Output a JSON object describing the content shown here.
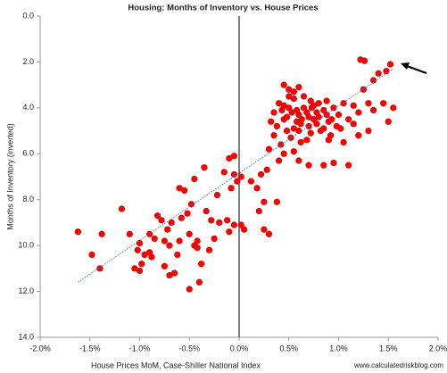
{
  "chart_data": {
    "type": "scatter",
    "title": "Housing: Months of Inventory vs. House Prices",
    "x_label": "House Prices MoM, Case-Shiller National Index",
    "y_label": "Months of Inventory (inverted)",
    "source": "www.calculatedriskblog.com",
    "color": "#ff0000",
    "y_inverted": true,
    "grid": false,
    "xlim": [
      -2,
      2
    ],
    "ylim": [
      0,
      14
    ],
    "xticks": [
      {
        "value": -2,
        "label": "-2.0%"
      },
      {
        "value": -1.5,
        "label": "-1.5%"
      },
      {
        "value": -1,
        "label": "-1.0%"
      },
      {
        "value": -0.5,
        "label": "-0.5%"
      },
      {
        "value": 0,
        "label": "0.0%"
      },
      {
        "value": 0.5,
        "label": "0.5%"
      },
      {
        "value": 1,
        "label": "1.0%"
      },
      {
        "value": 1.5,
        "label": "1.5%"
      },
      {
        "value": 2,
        "label": "2.0%"
      }
    ],
    "yticks": [
      {
        "value": 0,
        "label": "0.0"
      },
      {
        "value": 2,
        "label": "2.0"
      },
      {
        "value": 4,
        "label": "4.0"
      },
      {
        "value": 6,
        "label": "6.0"
      },
      {
        "value": 8,
        "label": "8.0"
      },
      {
        "value": 10,
        "label": "10.0"
      },
      {
        "value": 12,
        "label": "12.0"
      },
      {
        "value": 14,
        "label": "14.0"
      }
    ],
    "trendline": {
      "color": "#4472c4",
      "x": [
        -1.62,
        1.55
      ],
      "y": [
        11.6,
        2.3
      ]
    },
    "x": [
      -1.62,
      -1.38,
      -1.4,
      -1.48,
      -1.18,
      -1.05,
      -1.0,
      -1.02,
      -0.98,
      -1.0,
      -0.95,
      -0.9,
      -0.88,
      -0.85,
      -0.82,
      -0.78,
      -0.75,
      -0.72,
      -0.7,
      -0.68,
      -0.62,
      -0.6,
      -0.58,
      -0.55,
      -0.52,
      -0.5,
      -0.48,
      -0.45,
      -0.42,
      -0.4,
      -0.38,
      -0.35,
      -0.33,
      -0.3,
      -0.28,
      -0.25,
      -0.22,
      -0.2,
      -0.15,
      -0.12,
      -0.1,
      -0.08,
      -0.05,
      -0.02,
      -0.05,
      -0.1,
      -0.05,
      0.02,
      0.05,
      0.02,
      -0.45,
      -0.6,
      -0.65,
      -0.75,
      -0.9,
      -1.1,
      -0.5,
      -0.7,
      -0.42,
      0.12,
      0.22,
      0.25,
      0.2,
      0.3,
      0.25,
      0.38,
      0.18,
      0.35,
      0.4,
      0.45,
      0.5,
      0.55,
      0.48,
      0.6,
      0.65,
      0.7,
      0.75,
      0.8,
      0.85,
      0.9,
      0.95,
      1.0,
      1.05,
      1.1,
      0.42,
      0.52,
      0.62,
      0.72,
      0.82,
      0.92,
      1.02,
      0.38,
      0.58,
      0.68,
      0.78,
      0.88,
      0.98,
      0.5,
      0.55,
      0.65,
      0.6,
      0.7,
      0.75,
      0.8,
      0.85,
      0.45,
      0.35,
      0.3,
      0.45,
      0.6,
      0.7,
      0.85,
      0.95,
      1.1,
      0.4,
      0.55,
      0.28,
      0.32,
      0.5,
      0.48,
      0.62,
      0.72,
      0.68,
      1.15,
      1.2,
      1.25,
      1.3,
      1.35,
      1.22,
      1.26,
      1.4,
      1.48,
      1.52,
      1.45,
      1.55,
      1.5,
      1.35,
      1.3,
      1.2,
      1.15,
      1.05,
      0.9,
      0.55,
      0.6,
      0.45,
      0.58,
      0.78,
      0.88,
      0.93,
      0.73,
      0.63,
      0.53,
      0.43
    ],
    "y": [
      9.4,
      9.5,
      11.0,
      10.4,
      8.4,
      11.0,
      9.9,
      10.2,
      10.8,
      11.1,
      10.4,
      9.5,
      10.5,
      9.7,
      8.7,
      8.9,
      9.8,
      9.3,
      10.0,
      9.0,
      10.4,
      9.8,
      8.8,
      7.6,
      8.6,
      9.5,
      8.2,
      10.0,
      9.8,
      11.6,
      10.8,
      6.6,
      8.5,
      10.2,
      8.9,
      9.7,
      7.8,
      9.0,
      6.8,
      8.9,
      9.4,
      7.5,
      6.9,
      7.2,
      9.1,
      6.2,
      6.1,
      7.0,
      9.3,
      9.1,
      7.1,
      7.5,
      11.2,
      10.9,
      10.3,
      9.5,
      11.9,
      11.3,
      10.1,
      7.2,
      6.9,
      8.1,
      8.5,
      9.5,
      9.3,
      8.1,
      7.5,
      4.2,
      3.8,
      4.5,
      3.2,
      3.6,
      5.0,
      4.3,
      4.0,
      4.8,
      3.9,
      4.4,
      4.1,
      4.6,
      4.0,
      4.3,
      3.8,
      4.5,
      5.6,
      5.3,
      5.5,
      5.1,
      5.0,
      5.2,
      4.9,
      4.8,
      4.6,
      4.2,
      4.7,
      3.7,
      4.8,
      4.0,
      4.9,
      3.5,
      5.0,
      4.4,
      4.5,
      3.8,
      4.9,
      3.9,
      5.2,
      5.8,
      6.0,
      6.3,
      6.5,
      6.5,
      6.4,
      6.5,
      6.3,
      5.9,
      6.7,
      4.6,
      3.5,
      4.4,
      4.7,
      3.7,
      5.4,
      3.9,
      4.2,
      3.2,
      3.8,
      4.1,
      1.9,
      1.95,
      2.5,
      2.4,
      2.1,
      3.8,
      4.0,
      4.6,
      2.8,
      5.0,
      5.2,
      4.7,
      5.5,
      5.4,
      3.3,
      3.1,
      3.0,
      4.1,
      4.2,
      4.3,
      4.5,
      4.0,
      4.5,
      4.2,
      4.1
    ]
  }
}
